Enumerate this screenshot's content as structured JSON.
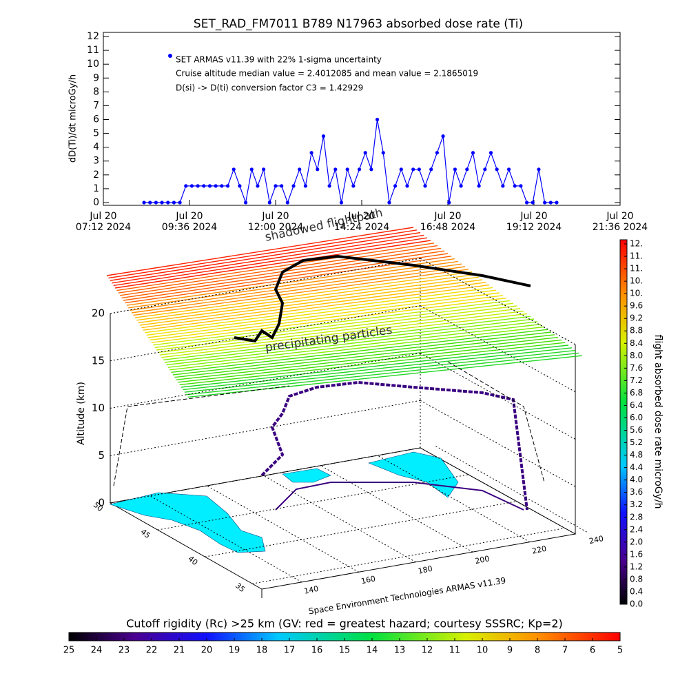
{
  "chart_data": [
    {
      "type": "line",
      "title": "SET_RAD_FM7011   B789 N17963 absorbed dose rate (Ti)",
      "ylabel": "dD(Ti)/dt microGy/h",
      "annotations": [
        "Cruise altitude median value = 2.4012085 and mean value = 2.1865019",
        "D(si) -> D(ti) conversion factor C3 = 1.42929"
      ],
      "xlim": [
        "2024-07-20T07:12",
        "2024-07-20T21:36"
      ],
      "xticks": [
        {
          "value": "2024-07-20T07:12",
          "label": "Jul 20\n07:12 2024"
        },
        {
          "value": "2024-07-20T09:36",
          "label": "Jul 20\n09:36 2024"
        },
        {
          "value": "2024-07-20T12:00",
          "label": "Jul 20\n12:00 2024"
        },
        {
          "value": "2024-07-20T14:24",
          "label": "Jul 20\n14:24 2024"
        },
        {
          "value": "2024-07-20T16:48",
          "label": "Jul 20\n16:48 2024"
        },
        {
          "value": "2024-07-20T19:12",
          "label": "Jul 20\n19:12 2024"
        },
        {
          "value": "2024-07-20T21:36",
          "label": "Jul 20\n21:36 2024"
        }
      ],
      "ylim": [
        -0.2,
        12.3
      ],
      "yticks": [
        0,
        1,
        2,
        3,
        4,
        5,
        6,
        7,
        8,
        9,
        10,
        11,
        12
      ],
      "x": [
        "2024-07-20T08:20",
        "2024-07-20T08:30",
        "2024-07-20T08:40",
        "2024-07-20T08:50",
        "2024-07-20T09:00",
        "2024-07-20T09:10",
        "2024-07-20T09:20",
        "2024-07-20T09:30",
        "2024-07-20T09:40",
        "2024-07-20T09:50",
        "2024-07-20T10:00",
        "2024-07-20T10:10",
        "2024-07-20T10:20",
        "2024-07-20T10:30",
        "2024-07-20T10:40",
        "2024-07-20T10:50",
        "2024-07-20T11:00",
        "2024-07-20T11:10",
        "2024-07-20T11:20",
        "2024-07-20T11:30",
        "2024-07-20T11:40",
        "2024-07-20T11:50",
        "2024-07-20T12:00",
        "2024-07-20T12:10",
        "2024-07-20T12:20",
        "2024-07-20T12:30",
        "2024-07-20T12:40",
        "2024-07-20T12:50",
        "2024-07-20T13:00",
        "2024-07-20T13:10",
        "2024-07-20T13:20",
        "2024-07-20T13:30",
        "2024-07-20T13:40",
        "2024-07-20T13:50",
        "2024-07-20T14:00",
        "2024-07-20T14:10",
        "2024-07-20T14:20",
        "2024-07-20T14:30",
        "2024-07-20T14:40",
        "2024-07-20T14:50",
        "2024-07-20T15:00",
        "2024-07-20T15:10",
        "2024-07-20T15:20",
        "2024-07-20T15:30",
        "2024-07-20T15:40",
        "2024-07-20T15:50",
        "2024-07-20T16:00",
        "2024-07-20T16:10",
        "2024-07-20T16:20",
        "2024-07-20T16:30",
        "2024-07-20T16:40",
        "2024-07-20T16:50",
        "2024-07-20T17:00",
        "2024-07-20T17:10",
        "2024-07-20T17:20",
        "2024-07-20T17:30",
        "2024-07-20T17:40",
        "2024-07-20T17:50",
        "2024-07-20T18:00",
        "2024-07-20T18:10",
        "2024-07-20T18:20",
        "2024-07-20T18:30",
        "2024-07-20T18:40",
        "2024-07-20T18:50",
        "2024-07-20T19:00",
        "2024-07-20T19:10",
        "2024-07-20T19:20",
        "2024-07-20T19:30",
        "2024-07-20T19:40",
        "2024-07-20T19:50"
      ],
      "series": [
        {
          "name": "SET ARMAS v11.39 with 22% 1-sigma uncertainty",
          "color": "#0000ff",
          "values": [
            0,
            0,
            0,
            0,
            0,
            0,
            0,
            1.2,
            1.2,
            1.2,
            1.2,
            1.2,
            1.2,
            1.2,
            1.2,
            2.4,
            1.2,
            0,
            2.4,
            1.2,
            2.4,
            0,
            1.2,
            1.2,
            0,
            1.2,
            2.4,
            1.2,
            3.6,
            2.4,
            4.8,
            1.2,
            2.4,
            0,
            2.4,
            1.2,
            2.4,
            3.6,
            2.4,
            6.0,
            3.6,
            0,
            1.2,
            2.4,
            1.2,
            2.4,
            2.4,
            1.2,
            2.4,
            3.6,
            4.8,
            0,
            2.4,
            1.2,
            2.4,
            3.6,
            1.2,
            2.4,
            3.6,
            2.4,
            1.2,
            2.4,
            1.2,
            1.2,
            0,
            0,
            2.4,
            0,
            0,
            0
          ]
        }
      ]
    },
    {
      "type": "surface3d",
      "zlabel": "Altitude (km)",
      "caption": "Space Environment Technologies ARMAS v11.39",
      "annotations": [
        "precipitating particles",
        "shadowed flightpath"
      ],
      "zlim": [
        0,
        20
      ],
      "zticks": [
        0,
        5,
        10,
        15,
        20
      ],
      "xlim": [
        126,
        236
      ],
      "xticks": [
        140,
        160,
        180,
        200,
        220,
        240
      ],
      "ylim": [
        50,
        34
      ],
      "yticks": [
        50,
        45,
        40,
        35
      ],
      "dose_colorbar": {
        "label": "flight absorbed dose rate microGy/h",
        "lim": [
          0,
          11.6
        ],
        "ticks": [
          {
            "value": 0,
            "label": "0.0"
          },
          0.4,
          0.8,
          1.2,
          1.6,
          {
            "value": 2,
            "label": "2.0"
          },
          2.4,
          2.8,
          3.2,
          3.6,
          {
            "value": 4,
            "label": "4.0"
          },
          4.4,
          4.8,
          5.2,
          5.6,
          {
            "value": 6,
            "label": "6.0"
          },
          6.4,
          6.8,
          7.2,
          7.6,
          {
            "value": 8,
            "label": "8.0"
          },
          8.4,
          8.8,
          9.2,
          9.6,
          {
            "value": 10,
            "label": "10."
          },
          {
            "value": 10.4,
            "label": "10."
          },
          {
            "value": 10.8,
            "label": "11."
          },
          {
            "value": 11.2,
            "label": "11."
          },
          {
            "value": 11.6,
            "label": "12."
          }
        ]
      },
      "rigidity_colorbar": {
        "label": "Cutoff rigidity (Rc) >25 km (GV: red = greatest hazard; courtesy SSSRC; Kp=2)",
        "lim": [
          25,
          5
        ],
        "ticks": [
          25,
          24,
          23,
          22,
          21,
          20,
          19,
          18,
          17,
          16,
          15,
          14,
          13,
          12,
          11,
          10,
          9,
          8,
          7,
          6,
          5
        ]
      }
    }
  ]
}
